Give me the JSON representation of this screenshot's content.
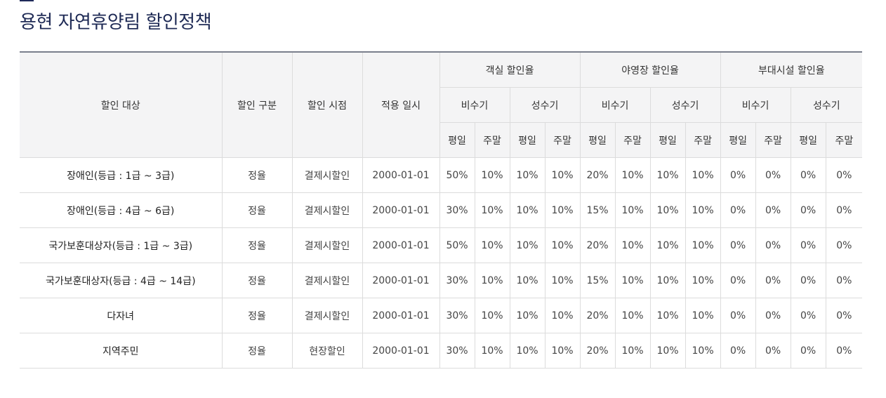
{
  "page": {
    "title": "용현 자연휴양림 할인정책"
  },
  "table": {
    "headers": {
      "target": "할인 대상",
      "type": "할인 구분",
      "timing": "할인 시점",
      "date": "적용 일시",
      "groups": [
        "객실 할인율",
        "야영장 할인율",
        "부대시설 할인율"
      ],
      "seasons": [
        "비수기",
        "성수기",
        "비수기",
        "성수기",
        "비수기",
        "성수기"
      ],
      "days": [
        "평일",
        "주말",
        "평일",
        "주말",
        "평일",
        "주말",
        "평일",
        "주말",
        "평일",
        "주말",
        "평일",
        "주말"
      ]
    },
    "rows": [
      {
        "target": "장애인(등급 : 1급 ~ 3급)",
        "type": "정율",
        "timing": "결제시할인",
        "date": "2000-01-01",
        "rates": [
          "50%",
          "10%",
          "10%",
          "10%",
          "20%",
          "10%",
          "10%",
          "10%",
          "0%",
          "0%",
          "0%",
          "0%"
        ]
      },
      {
        "target": "장애인(등급 : 4급 ~ 6급)",
        "type": "정율",
        "timing": "결제시할인",
        "date": "2000-01-01",
        "rates": [
          "30%",
          "10%",
          "10%",
          "10%",
          "15%",
          "10%",
          "10%",
          "10%",
          "0%",
          "0%",
          "0%",
          "0%"
        ]
      },
      {
        "target": "국가보훈대상자(등급 : 1급 ~ 3급)",
        "type": "정율",
        "timing": "결제시할인",
        "date": "2000-01-01",
        "rates": [
          "50%",
          "10%",
          "10%",
          "10%",
          "20%",
          "10%",
          "10%",
          "10%",
          "0%",
          "0%",
          "0%",
          "0%"
        ]
      },
      {
        "target": "국가보훈대상자(등급 : 4급 ~ 14급)",
        "type": "정율",
        "timing": "결제시할인",
        "date": "2000-01-01",
        "rates": [
          "30%",
          "10%",
          "10%",
          "10%",
          "15%",
          "10%",
          "10%",
          "10%",
          "0%",
          "0%",
          "0%",
          "0%"
        ]
      },
      {
        "target": "다자녀",
        "type": "정율",
        "timing": "결제시할인",
        "date": "2000-01-01",
        "rates": [
          "30%",
          "10%",
          "10%",
          "10%",
          "20%",
          "10%",
          "10%",
          "10%",
          "0%",
          "0%",
          "0%",
          "0%"
        ]
      },
      {
        "target": "지역주민",
        "type": "정율",
        "timing": "현장할인",
        "date": "2000-01-01",
        "rates": [
          "30%",
          "10%",
          "10%",
          "10%",
          "20%",
          "10%",
          "10%",
          "10%",
          "0%",
          "0%",
          "0%",
          "0%"
        ]
      }
    ]
  }
}
